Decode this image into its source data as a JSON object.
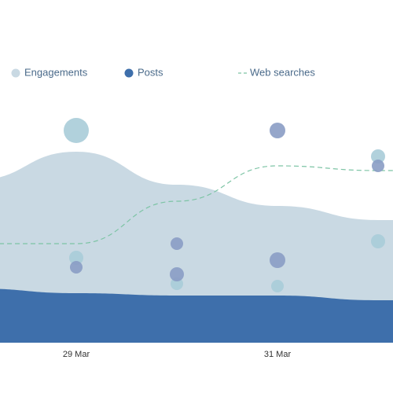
{
  "chart_data": {
    "type": "area",
    "categories": [
      null,
      "29 Mar",
      null,
      "31 Mar",
      null
    ],
    "ylim": [
      0,
      100
    ],
    "series": [
      {
        "name": "Engagements",
        "color": "#c9d9e3",
        "values": [
          69,
          81,
          67,
          58,
          52
        ]
      },
      {
        "name": "Posts",
        "color": "#3e6fab",
        "values": [
          23,
          21,
          20,
          20,
          18
        ]
      },
      {
        "name": "Web searches",
        "color": "#7dc4a5",
        "dashed": true,
        "values": [
          42,
          42,
          60,
          75,
          73
        ]
      }
    ],
    "bubbles": [
      {
        "color": "#a8ccd8",
        "values": [
          null,
          90,
          25,
          24,
          79
        ],
        "sizes": [
          null,
          16,
          8,
          8,
          9
        ]
      },
      {
        "color": "#a8ccd8",
        "values": [
          null,
          36,
          null,
          null,
          43
        ],
        "sizes": [
          null,
          9,
          null,
          null,
          9
        ]
      },
      {
        "color": "#8a9cc4",
        "values": [
          null,
          32,
          42,
          90,
          75
        ],
        "sizes": [
          null,
          8,
          8,
          10,
          8
        ]
      },
      {
        "color": "#8a9cc4",
        "values": [
          null,
          null,
          29,
          35,
          null
        ],
        "sizes": [
          null,
          null,
          9,
          10,
          null
        ]
      }
    ]
  }
}
